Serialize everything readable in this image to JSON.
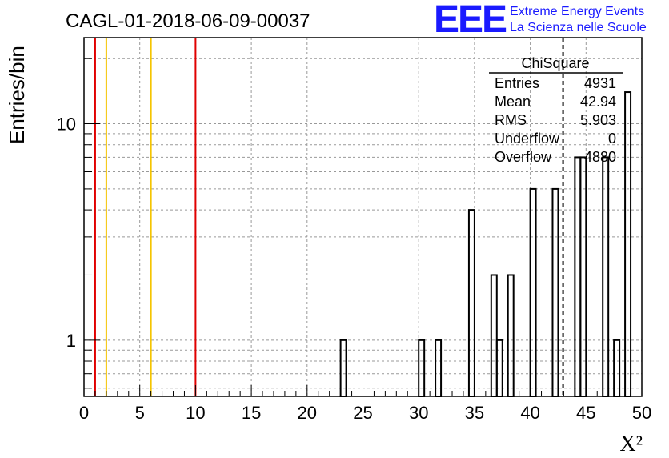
{
  "chart_data": {
    "type": "bar",
    "title": "CAGL-01-2018-06-09-00037",
    "xlabel": "X²",
    "ylabel": "Entries/bin",
    "xlim": [
      0,
      50
    ],
    "ylim": [
      0.55,
      25
    ],
    "yscale": "log",
    "grid": true,
    "bin_width": 0.5,
    "x_ticks": [
      "0",
      "5",
      "10",
      "15",
      "20",
      "25",
      "30",
      "35",
      "40",
      "45",
      "50"
    ],
    "y_ticks": [
      "1",
      "10"
    ],
    "bins": [
      {
        "x": 23.0,
        "value": 1
      },
      {
        "x": 30.0,
        "value": 1
      },
      {
        "x": 31.5,
        "value": 1
      },
      {
        "x": 34.5,
        "value": 4
      },
      {
        "x": 36.5,
        "value": 2
      },
      {
        "x": 37.0,
        "value": 1
      },
      {
        "x": 38.0,
        "value": 2
      },
      {
        "x": 40.0,
        "value": 5
      },
      {
        "x": 42.0,
        "value": 5
      },
      {
        "x": 44.0,
        "value": 7
      },
      {
        "x": 44.5,
        "value": 7
      },
      {
        "x": 46.5,
        "value": 7
      },
      {
        "x": 47.5,
        "value": 1
      },
      {
        "x": 48.5,
        "value": 14
      }
    ],
    "reference_lines": [
      {
        "x": 1,
        "color": "#e00000"
      },
      {
        "x": 2,
        "color": "#f5c400"
      },
      {
        "x": 6,
        "color": "#f5c400"
      },
      {
        "x": 10,
        "color": "#e00000"
      }
    ],
    "mean_line": {
      "x": 42.94,
      "style": "dashed"
    },
    "stats_box": {
      "title": "ChiSquare",
      "rows": [
        {
          "label": "Entries",
          "value": "4931"
        },
        {
          "label": "Mean",
          "value": "42.94"
        },
        {
          "label": "RMS",
          "value": "5.903"
        },
        {
          "label": "Underflow",
          "value": "0"
        },
        {
          "label": "Overflow",
          "value": "4880"
        }
      ]
    }
  },
  "logo": {
    "mark": "EEE",
    "line1": "Extreme Energy Events",
    "line2": "La Scienza nelle Scuole"
  }
}
